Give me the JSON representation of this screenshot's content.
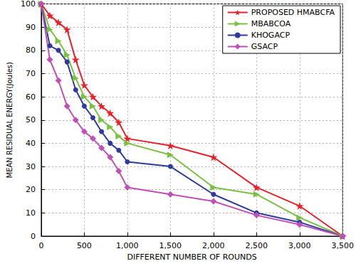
{
  "chart_data": {
    "type": "line",
    "x_label": "DIFFERENT NUMBER OF ROUNDS",
    "y_label": "MEAN RESIDUAL ENERGY(Joules)",
    "x": [
      0,
      100,
      200,
      300,
      400,
      500,
      600,
      700,
      800,
      900,
      1000,
      1500,
      2000,
      2500,
      3000,
      3500
    ],
    "series": [
      {
        "name": "PROPOSED HMABCFA",
        "color": "#e8202a",
        "marker": "star",
        "values": [
          100,
          95,
          92,
          89,
          76,
          65,
          60,
          56,
          53,
          49,
          42,
          39,
          34,
          21,
          13,
          0
        ]
      },
      {
        "name": "MBABCOA",
        "color": "#7ac143",
        "marker": "triangle-right",
        "values": [
          100,
          89,
          84,
          78,
          68,
          60,
          56,
          50,
          47,
          43,
          40,
          35,
          21,
          18,
          8,
          0
        ]
      },
      {
        "name": "KHOGACP",
        "color": "#2e3b9e",
        "marker": "circle",
        "values": [
          100,
          82,
          80,
          75,
          63,
          56,
          51,
          45,
          40,
          37,
          32,
          30,
          18,
          10,
          6,
          0
        ]
      },
      {
        "name": "GSACP",
        "color": "#c050b8",
        "marker": "diamond",
        "values": [
          100,
          76,
          67,
          56,
          50,
          45,
          42,
          38,
          34,
          28,
          21,
          18,
          15,
          9,
          5,
          0
        ]
      }
    ],
    "xlim": [
      0,
      3500
    ],
    "xticks": [
      0,
      500,
      1000,
      1500,
      2000,
      2500,
      3000,
      3500
    ],
    "ylim": [
      0,
      100
    ],
    "yticks": [
      0,
      10,
      20,
      30,
      40,
      50,
      60,
      70,
      80,
      90,
      100
    ],
    "grid": true,
    "legend": "top-right"
  }
}
